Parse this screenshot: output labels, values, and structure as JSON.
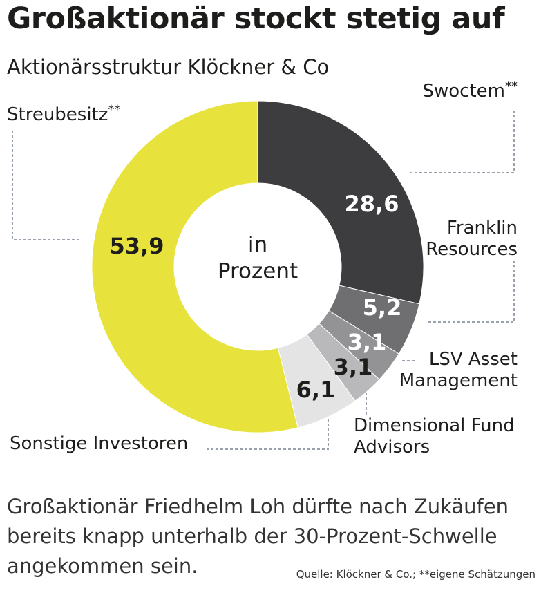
{
  "header": {
    "title": "Großaktionär stockt stetig auf",
    "subtitle": "Aktionärsstruktur Klöckner & Co"
  },
  "chart_data": {
    "type": "pie",
    "center_label": [
      "in",
      "Prozent"
    ],
    "series": [
      {
        "name": "Swoctem",
        "marker": "**",
        "value": 28.6,
        "value_label": "28,6",
        "color": "#3d3d3f",
        "text_color": "#ffffff"
      },
      {
        "name": "Franklin Resources",
        "name_lines": [
          "Franklin",
          "Resources"
        ],
        "marker": "",
        "value": 5.2,
        "value_label": "5,2",
        "color": "#6f6f71",
        "text_color": "#ffffff"
      },
      {
        "name": "LSV Asset Management",
        "name_lines": [
          "LSV Asset",
          "Management"
        ],
        "marker": "",
        "value": 3.1,
        "value_label": "3,1",
        "color": "#939395",
        "text_color": "#ffffff"
      },
      {
        "name": "Dimensional Fund Advisors",
        "name_lines": [
          "Dimensional Fund",
          "Advisors"
        ],
        "marker": "",
        "value": 3.1,
        "value_label": "3,1",
        "color": "#b9b9bb",
        "text_color": "#1d1d1b"
      },
      {
        "name": "Sonstige Investoren",
        "marker": "",
        "value": 6.1,
        "value_label": "6,1",
        "color": "#e4e4e5",
        "text_color": "#1d1d1b"
      },
      {
        "name": "Streubesitz",
        "marker": "**",
        "value": 53.9,
        "value_label": "53,9",
        "color": "#e8e33c",
        "text_color": "#1d1d1b"
      }
    ]
  },
  "caption": "Großaktionär Friedhelm Loh dürfte nach Zukäufen bereits knapp unterhalb der 30-Prozent-Schwelle angekommen sein.",
  "source": "Quelle: Klöckner & Co.; **eigene Schätzungen"
}
